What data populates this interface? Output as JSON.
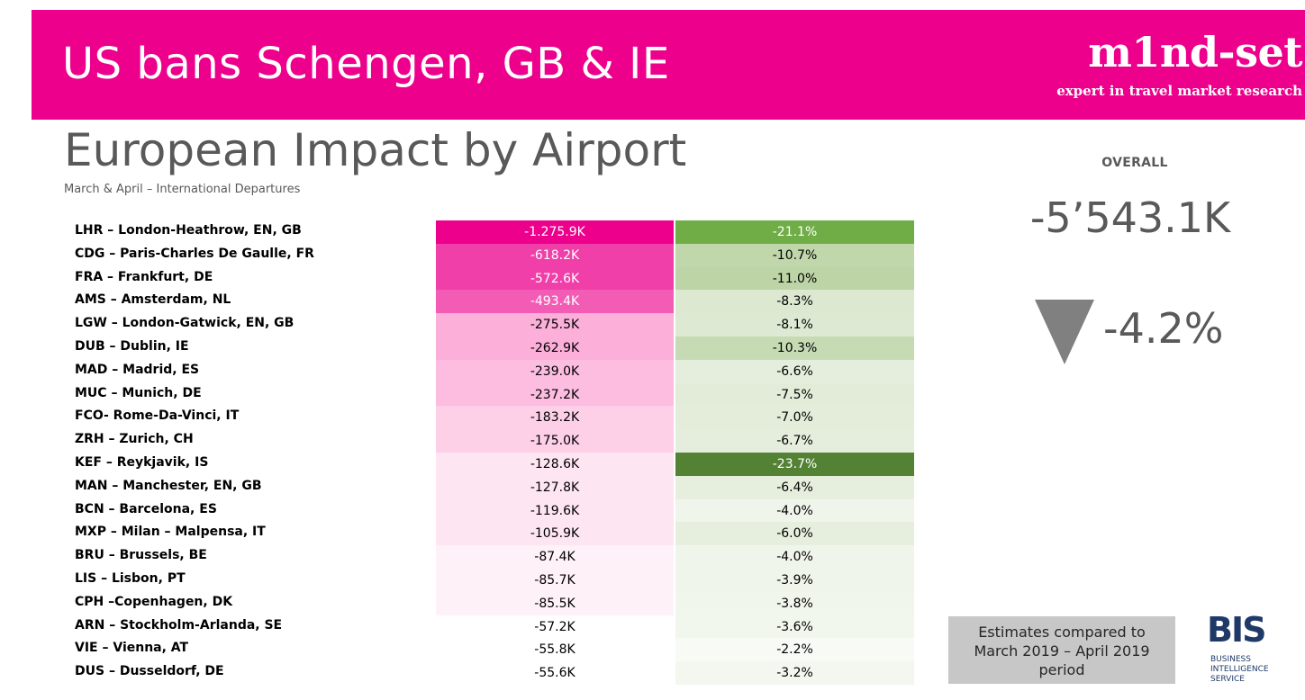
{
  "header": {
    "title": "US bans Schengen, GB & IE",
    "logo_word": "m1nd-set",
    "logo_tagline": "expert in travel market research",
    "brand_color": "#ec008c"
  },
  "page": {
    "title": "European Impact by Airport",
    "subtitle": "March & April – International Departures"
  },
  "overall": {
    "label": "OVERALL",
    "value": "-5’543.1K",
    "change": "-4.2%",
    "trend_icon": "down-triangle-icon"
  },
  "rows": [
    {
      "airport": "LHR – London-Heathrow, EN, GB",
      "value": "-1.275.9K",
      "pct": "-21.1%"
    },
    {
      "airport": "CDG – Paris-Charles De Gaulle, FR",
      "value": "-618.2K",
      "pct": "-10.7%"
    },
    {
      "airport": "FRA – Frankfurt, DE",
      "value": "-572.6K",
      "pct": "-11.0%"
    },
    {
      "airport": "AMS – Amsterdam, NL",
      "value": "-493.4K",
      "pct": "-8.3%"
    },
    {
      "airport": "LGW – London-Gatwick, EN, GB",
      "value": "-275.5K",
      "pct": "-8.1%"
    },
    {
      "airport": "DUB – Dublin, IE",
      "value": "-262.9K",
      "pct": "-10.3%"
    },
    {
      "airport": "MAD – Madrid, ES",
      "value": "-239.0K",
      "pct": "-6.6%"
    },
    {
      "airport": "MUC – Munich, DE",
      "value": "-237.2K",
      "pct": "-7.5%"
    },
    {
      "airport": "FCO- Rome-Da-Vinci, IT",
      "value": "-183.2K",
      "pct": "-7.0%"
    },
    {
      "airport": "ZRH – Zurich, CH",
      "value": "-175.0K",
      "pct": "-6.7%"
    },
    {
      "airport": "KEF – Reykjavik, IS",
      "value": "-128.6K",
      "pct": "-23.7%"
    },
    {
      "airport": "MAN – Manchester, EN, GB",
      "value": "-127.8K",
      "pct": "-6.4%"
    },
    {
      "airport": "BCN – Barcelona, ES",
      "value": "-119.6K",
      "pct": "-4.0%"
    },
    {
      "airport": "MXP – Milan – Malpensa, IT",
      "value": "-105.9K",
      "pct": "-6.0%"
    },
    {
      "airport": "BRU – Brussels, BE",
      "value": "-87.4K",
      "pct": "-4.0%"
    },
    {
      "airport": "LIS – Lisbon, PT",
      "value": "-85.7K",
      "pct": "-3.9%"
    },
    {
      "airport": "CPH –Copenhagen, DK",
      "value": "-85.5K",
      "pct": "-3.8%"
    },
    {
      "airport": "ARN – Stockholm-Arlanda, SE",
      "value": "-57.2K",
      "pct": "-3.6%"
    },
    {
      "airport": "VIE – Vienna, AT",
      "value": "-55.8K",
      "pct": "-2.2%"
    },
    {
      "airport": "DUS – Dusseldorf, DE",
      "value": "-55.6K",
      "pct": "-3.2%"
    }
  ],
  "colors": {
    "value_cells": [
      "#ec008c",
      "#f03fa8",
      "#f03fa8",
      "#f25cb5",
      "#fbafd9",
      "#fbafd9",
      "#fcbde0",
      "#fcbde0",
      "#fdd0e8",
      "#fdd0e8",
      "#fee5f2",
      "#fee5f2",
      "#fee5f2",
      "#fee5f2",
      "#fff1f8",
      "#fff1f8",
      "#fff1f8",
      "#ffffff",
      "#ffffff",
      "#ffffff"
    ],
    "pct_cells": [
      "#70ad47",
      "#c0d7ab",
      "#bdd5a6",
      "#dce8d0",
      "#dde9d2",
      "#c6dbb3",
      "#e5eedc",
      "#e2ecd8",
      "#e3edd9",
      "#e5eedc",
      "#548235",
      "#e6efdd",
      "#f0f5eb",
      "#e6efdd",
      "#f0f5eb",
      "#f0f5eb",
      "#f1f6ec",
      "#f2f7ee",
      "#f8faf6",
      "#f3f7ef"
    ],
    "pct_text_light": [
      0,
      10
    ]
  },
  "note": {
    "text_line1": "Estimates compared to",
    "text_line2": "March 2019 – April 2019",
    "text_line3": "period"
  },
  "bis_logo": {
    "mark": "BIS",
    "line1": "BUSINESS",
    "line2": "INTELLIGENCE",
    "line3": "SERVICE"
  }
}
